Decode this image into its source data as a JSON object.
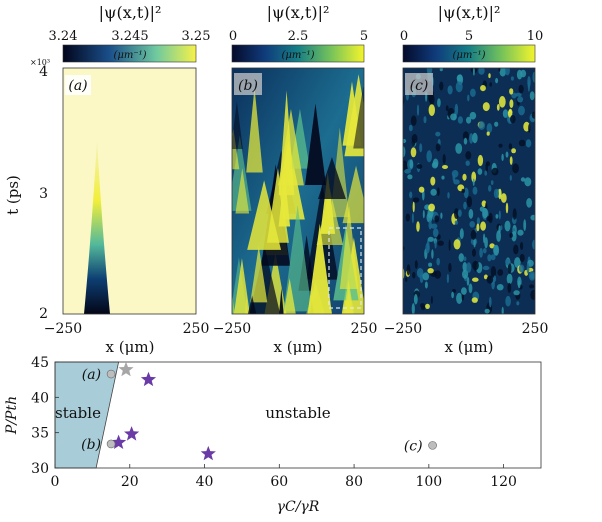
{
  "panels": [
    {
      "label": "(a)",
      "title": "|ψ(x,t)|²",
      "cbar_min": "3.24",
      "cbar_mid": "3.245",
      "cbar_max": "3.25",
      "cbar_unit": "(μm⁻¹)",
      "cbar_exponent": "×10³"
    },
    {
      "label": "(b)",
      "title": "|ψ(x,t)|²",
      "cbar_min": "0",
      "cbar_mid": "2.5",
      "cbar_max": "5",
      "cbar_unit": "(μm⁻¹)"
    },
    {
      "label": "(c)",
      "title": "|ψ(x,t)|²",
      "cbar_min": "0",
      "cbar_mid": "5",
      "cbar_max": "10",
      "cbar_unit": "(μm⁻¹)"
    }
  ],
  "top_axes": {
    "ylabel": "t (ps)",
    "yticks": [
      "2",
      "3",
      "4"
    ],
    "xlabel": "x (μm)",
    "xtick_left": "−250",
    "xtick_right": "250"
  },
  "chart_data": {
    "type": "scatter",
    "title": "",
    "xlabel": "γC/γR",
    "ylabel": "P/Pth",
    "xlim": [
      0,
      130
    ],
    "ylim": [
      30,
      45
    ],
    "xticks": [
      "0",
      "20",
      "40",
      "60",
      "80",
      "100",
      "120"
    ],
    "yticks": [
      "30",
      "35",
      "40",
      "45"
    ],
    "region_labels": {
      "stable": "stable",
      "unstable": "unstable"
    },
    "stable_boundary": [
      [
        0,
        30
      ],
      [
        11,
        30
      ],
      [
        17,
        45
      ],
      [
        0,
        45
      ]
    ],
    "circle_points": [
      {
        "label": "(a)",
        "x": 15,
        "y": 43.3
      },
      {
        "label": "(b)",
        "x": 15,
        "y": 33.4
      },
      {
        "label": "(c)",
        "x": 101,
        "y": 33.2
      }
    ],
    "gray_stars": [
      {
        "x": 19,
        "y": 43.9
      }
    ],
    "purple_stars": [
      {
        "x": 25,
        "y": 42.5
      },
      {
        "x": 17,
        "y": 33.6
      },
      {
        "x": 20.5,
        "y": 34.8
      },
      {
        "x": 41,
        "y": 32
      }
    ],
    "colors": {
      "stable_fill": "#a9cdd8",
      "purple": "#6a3aa6",
      "gray_star": "#a6a6a6",
      "circle": "#bdbdbd"
    }
  }
}
